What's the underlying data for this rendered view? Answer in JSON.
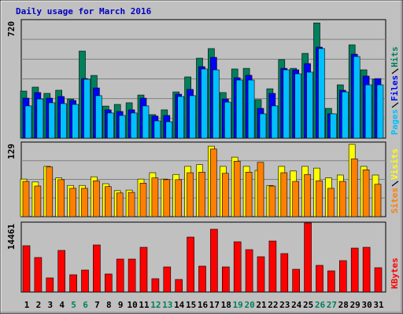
{
  "chart_data": [
    {
      "type": "bar",
      "title": "Daily usage for March 2016",
      "title_color": "#0000c0",
      "ylim": [
        0,
        720
      ],
      "yticks": [
        720
      ],
      "series": [
        {
          "name": "Hits",
          "color": "#00805c",
          "values": [
            286,
            310,
            272,
            291,
            238,
            529,
            381,
            195,
            205,
            215,
            262,
            143,
            172,
            281,
            372,
            486,
            544,
            277,
            420,
            424,
            234,
            300,
            477,
            424,
            515,
            700,
            181,
            324,
            567,
            415,
            358
          ]
        },
        {
          "name": "Files",
          "color": "#0000ff",
          "values": [
            243,
            277,
            243,
            253,
            229,
            362,
            305,
            172,
            162,
            172,
            243,
            134,
            138,
            267,
            296,
            434,
            491,
            238,
            367,
            382,
            181,
            272,
            424,
            415,
            453,
            553,
            148,
            291,
            510,
            377,
            362
          ]
        },
        {
          "name": "Pages",
          "color": "#00c0ff",
          "values": [
            196,
            238,
            215,
            210,
            205,
            358,
            258,
            153,
            138,
            153,
            196,
            105,
            100,
            253,
            258,
            420,
            415,
            219,
            353,
            353,
            148,
            196,
            415,
            391,
            401,
            544,
            148,
            281,
            496,
            324,
            324
          ]
        }
      ]
    },
    {
      "type": "bar",
      "ylim": [
        0,
        129
      ],
      "yticks": [
        129
      ],
      "series": [
        {
          "name": "Visits",
          "color": "#ffff00",
          "values": [
            65,
            60,
            87,
            67,
            54,
            54,
            69,
            57,
            45,
            46,
            65,
            76,
            65,
            73,
            87,
            90,
            122,
            87,
            103,
            87,
            80,
            54,
            87,
            79,
            87,
            84,
            67,
            72,
            125,
            87,
            72
          ]
        },
        {
          "name": "Sites",
          "color": "#ff8000",
          "values": [
            61,
            53,
            86,
            64,
            49,
            49,
            62,
            52,
            41,
            42,
            58,
            67,
            64,
            64,
            76,
            77,
            117,
            75,
            96,
            77,
            94,
            53,
            76,
            61,
            73,
            62,
            49,
            61,
            100,
            81,
            56
          ]
        }
      ]
    },
    {
      "type": "bar",
      "ylim": [
        0,
        14461
      ],
      "yticks": [
        14461
      ],
      "categories": [
        "1",
        "2",
        "3",
        "4",
        "5",
        "6",
        "7",
        "8",
        "9",
        "10",
        "11",
        "12",
        "13",
        "14",
        "15",
        "16",
        "17",
        "18",
        "19",
        "20",
        "21",
        "22",
        "23",
        "24",
        "25",
        "26",
        "27",
        "28",
        "29",
        "30",
        "31"
      ],
      "category_colors": [
        "#000000",
        "#000000",
        "#000000",
        "#000000",
        "#00805c",
        "#00805c",
        "#000000",
        "#000000",
        "#000000",
        "#000000",
        "#000000",
        "#00805c",
        "#00805c",
        "#000000",
        "#000000",
        "#000000",
        "#000000",
        "#000000",
        "#00805c",
        "#00805c",
        "#000000",
        "#000000",
        "#000000",
        "#000000",
        "#000000",
        "#00805c",
        "#00805c",
        "#000000",
        "#000000",
        "#000000",
        "#000000"
      ],
      "series": [
        {
          "name": "KBytes",
          "color": "#ff0000",
          "values": [
            9587,
            7149,
            2925,
            8612,
            3575,
            4550,
            9749,
            3737,
            6824,
            6824,
            9262,
            2762,
            5200,
            2600,
            11374,
            5362,
            12999,
            5200,
            10399,
            8774,
            7312,
            10561,
            7962,
            4712,
            14299,
            5524,
            4387,
            6500,
            9099,
            9262,
            5037
          ]
        }
      ]
    }
  ]
}
